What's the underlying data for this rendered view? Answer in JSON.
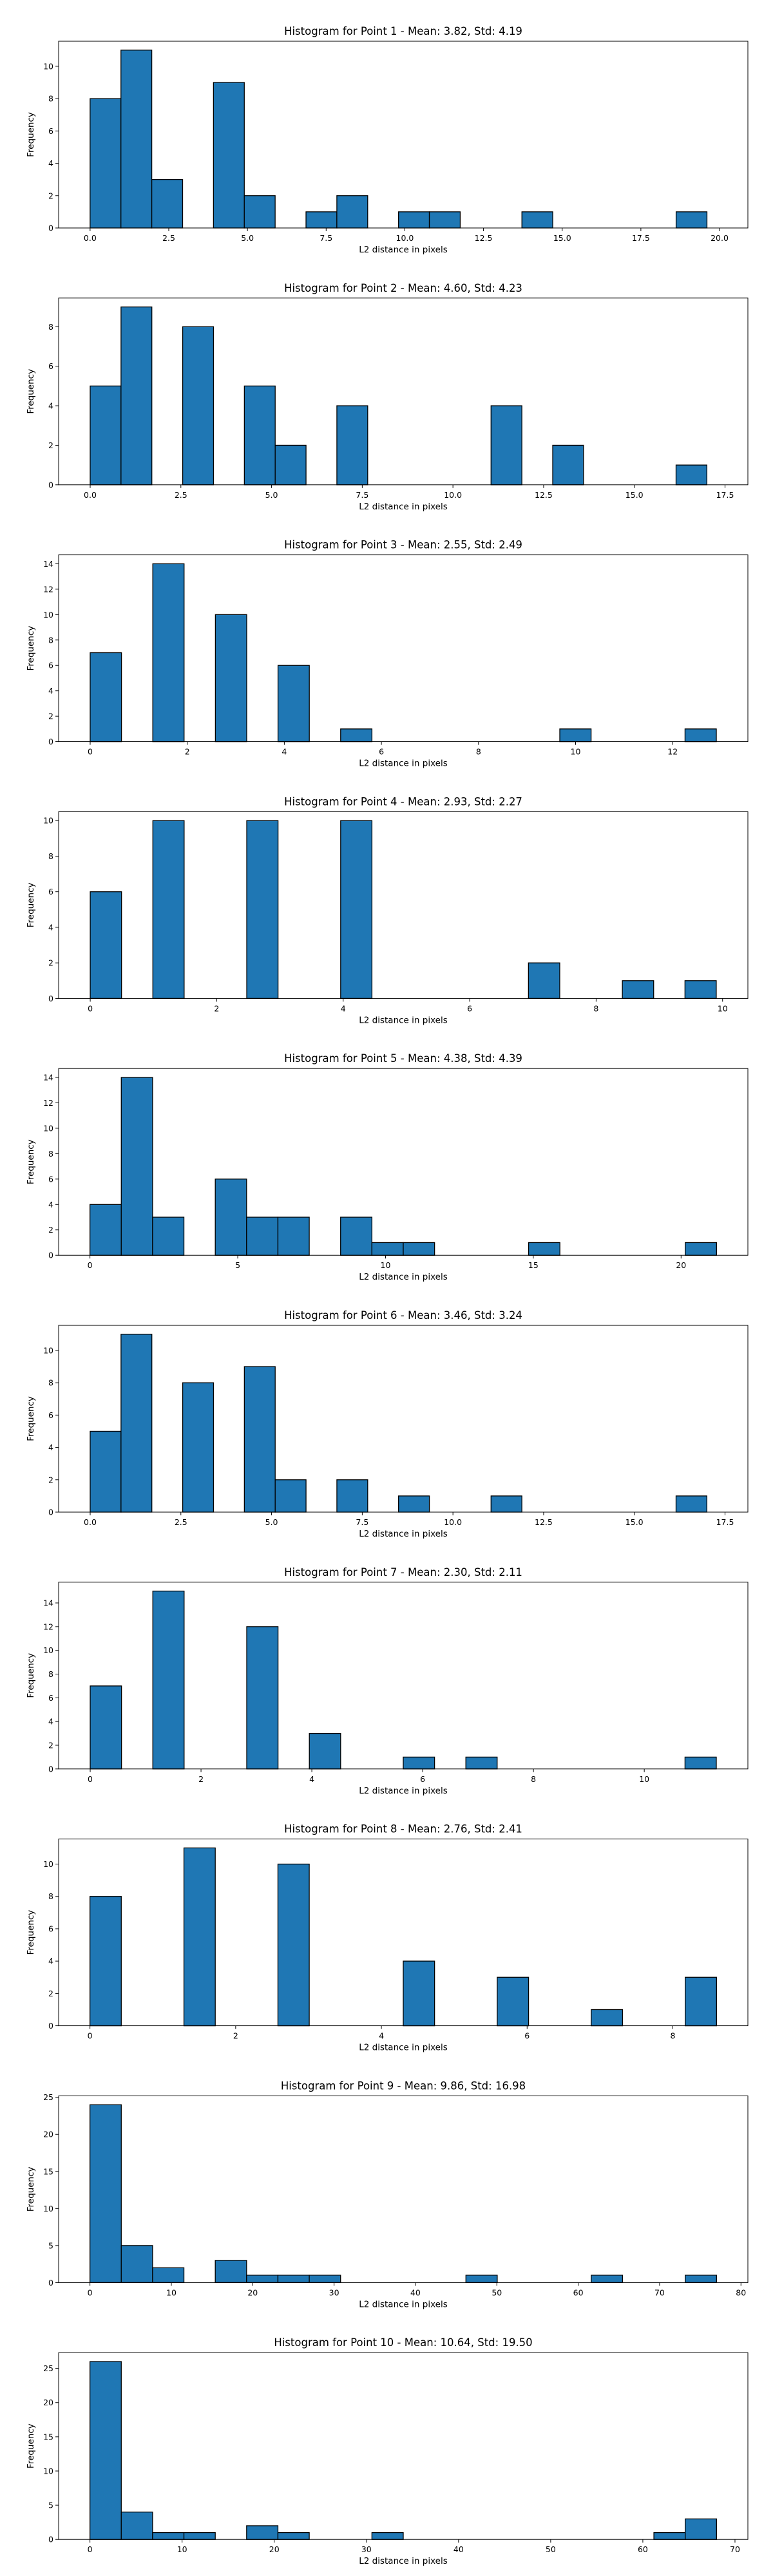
{
  "chart_data": [
    {
      "type": "bar",
      "title": "Histogram for Point 1 - Mean: 3.82, Std: 4.19",
      "xlabel": "L2 distance in pixels",
      "ylabel": "Frequency",
      "xlim": [
        -1.0,
        20.9
      ],
      "ylim": [
        0,
        11.55
      ],
      "xticks": [
        0,
        2.5,
        5,
        7.5,
        10,
        12.5,
        15,
        17.5,
        20
      ],
      "xtick_labels": [
        "0.0",
        "2.5",
        "5.0",
        "7.5",
        "10.0",
        "12.5",
        "15.0",
        "17.5",
        "20.0"
      ],
      "yticks": [
        0,
        2,
        4,
        6,
        8,
        10
      ],
      "ytick_labels": [
        "0",
        "2",
        "4",
        "6",
        "8",
        "10"
      ],
      "bin_edges": [
        0.0,
        0.98,
        1.96,
        2.94,
        3.92,
        4.9,
        5.88,
        6.86,
        7.84,
        8.82,
        9.8,
        10.78,
        11.76,
        12.74,
        13.72,
        14.7,
        15.68,
        16.66,
        17.64,
        18.62,
        19.6
      ],
      "counts": [
        8,
        11,
        3,
        0,
        9,
        2,
        0,
        1,
        2,
        0,
        1,
        1,
        0,
        0,
        1,
        0,
        0,
        0,
        0,
        1
      ]
    },
    {
      "type": "bar",
      "title": "Histogram for Point 2 - Mean: 4.60, Std: 4.23",
      "xlabel": "L2 distance in pixels",
      "ylabel": "Frequency",
      "xlim": [
        -0.87,
        18.13
      ],
      "ylim": [
        0,
        9.45
      ],
      "xticks": [
        0,
        2.5,
        5,
        7.5,
        10,
        12.5,
        15,
        17.5
      ],
      "xtick_labels": [
        "0.0",
        "2.5",
        "5.0",
        "7.5",
        "10.0",
        "12.5",
        "15.0",
        "17.5"
      ],
      "yticks": [
        0,
        2,
        4,
        6,
        8
      ],
      "ytick_labels": [
        "0",
        "2",
        "4",
        "6",
        "8"
      ],
      "bin_edges": [
        0.0,
        0.85,
        1.7,
        2.55,
        3.4,
        4.25,
        5.1,
        5.95,
        6.8,
        7.65,
        8.5,
        9.35,
        10.2,
        11.05,
        11.9,
        12.75,
        13.6,
        14.45,
        15.3,
        16.15,
        17.0
      ],
      "counts": [
        5,
        9,
        0,
        8,
        0,
        5,
        2,
        0,
        4,
        0,
        0,
        0,
        0,
        4,
        0,
        2,
        0,
        0,
        0,
        1
      ]
    },
    {
      "type": "bar",
      "title": "Histogram for Point 3 - Mean: 2.55, Std: 2.49",
      "xlabel": "L2 distance in pixels",
      "ylabel": "Frequency",
      "xlim": [
        -0.65,
        13.55
      ],
      "ylim": [
        0,
        14.7
      ],
      "xticks": [
        0,
        2,
        4,
        6,
        8,
        10,
        12
      ],
      "xtick_labels": [
        "0",
        "2",
        "4",
        "6",
        "8",
        "10",
        "12"
      ],
      "yticks": [
        0,
        2,
        4,
        6,
        8,
        10,
        12,
        14
      ],
      "ytick_labels": [
        "0",
        "2",
        "4",
        "6",
        "8",
        "10",
        "12",
        "14"
      ],
      "bin_edges": [
        0.0,
        0.645,
        1.29,
        1.935,
        2.58,
        3.225,
        3.87,
        4.515,
        5.16,
        5.805,
        6.45,
        7.095,
        7.74,
        8.385,
        9.03,
        9.675,
        10.32,
        10.965,
        11.61,
        12.255,
        12.9
      ],
      "counts": [
        7,
        0,
        14,
        0,
        10,
        0,
        6,
        0,
        1,
        0,
        0,
        0,
        0,
        0,
        0,
        1,
        0,
        0,
        0,
        1
      ]
    },
    {
      "type": "bar",
      "title": "Histogram for Point 4 - Mean: 2.93, Std: 2.27",
      "xlabel": "L2 distance in pixels",
      "ylabel": "Frequency",
      "xlim": [
        -0.5,
        10.4
      ],
      "ylim": [
        0,
        10.5
      ],
      "xticks": [
        0,
        2,
        4,
        6,
        8,
        10
      ],
      "xtick_labels": [
        "0",
        "2",
        "4",
        "6",
        "8",
        "10"
      ],
      "yticks": [
        0,
        2,
        4,
        6,
        8,
        10
      ],
      "ytick_labels": [
        "0",
        "2",
        "4",
        "6",
        "8",
        "10"
      ],
      "bin_edges": [
        0.0,
        0.495,
        0.99,
        1.485,
        1.98,
        2.475,
        2.97,
        3.465,
        3.96,
        4.455,
        4.95,
        5.445,
        5.94,
        6.435,
        6.93,
        7.425,
        7.92,
        8.415,
        8.91,
        9.405,
        9.9
      ],
      "counts": [
        6,
        0,
        10,
        0,
        0,
        10,
        0,
        0,
        10,
        0,
        0,
        0,
        0,
        0,
        2,
        0,
        0,
        1,
        0,
        1
      ]
    },
    {
      "type": "bar",
      "title": "Histogram for Point 5 - Mean: 4.38, Std: 4.39",
      "xlabel": "L2 distance in pixels",
      "ylabel": "Frequency",
      "xlim": [
        -1.06,
        22.26
      ],
      "ylim": [
        0,
        14.7
      ],
      "xticks": [
        0,
        5,
        10,
        15,
        20
      ],
      "xtick_labels": [
        "0",
        "5",
        "10",
        "15",
        "20"
      ],
      "yticks": [
        0,
        2,
        4,
        6,
        8,
        10,
        12,
        14
      ],
      "ytick_labels": [
        "0",
        "2",
        "4",
        "6",
        "8",
        "10",
        "12",
        "14"
      ],
      "bin_edges": [
        0.0,
        1.06,
        2.12,
        3.18,
        4.24,
        5.3,
        6.36,
        7.42,
        8.48,
        9.54,
        10.6,
        11.66,
        12.72,
        13.78,
        14.84,
        15.9,
        16.96,
        18.02,
        19.08,
        20.14,
        21.2
      ],
      "counts": [
        4,
        14,
        3,
        0,
        6,
        3,
        3,
        0,
        3,
        1,
        1,
        0,
        0,
        0,
        1,
        0,
        0,
        0,
        0,
        1
      ]
    },
    {
      "type": "bar",
      "title": "Histogram for Point 6 - Mean: 3.46, Std: 3.24",
      "xlabel": "L2 distance in pixels",
      "ylabel": "Frequency",
      "xlim": [
        -0.87,
        18.13
      ],
      "ylim": [
        0,
        11.55
      ],
      "xticks": [
        0,
        2.5,
        5,
        7.5,
        10,
        12.5,
        15,
        17.5
      ],
      "xtick_labels": [
        "0.0",
        "2.5",
        "5.0",
        "7.5",
        "10.0",
        "12.5",
        "15.0",
        "17.5"
      ],
      "yticks": [
        0,
        2,
        4,
        6,
        8,
        10
      ],
      "ytick_labels": [
        "0",
        "2",
        "4",
        "6",
        "8",
        "10"
      ],
      "bin_edges": [
        0.0,
        0.85,
        1.7,
        2.55,
        3.4,
        4.25,
        5.1,
        5.95,
        6.8,
        7.65,
        8.5,
        9.35,
        10.2,
        11.05,
        11.9,
        12.75,
        13.6,
        14.45,
        15.3,
        16.15,
        17.0
      ],
      "counts": [
        5,
        11,
        0,
        8,
        0,
        9,
        2,
        0,
        2,
        0,
        1,
        0,
        0,
        1,
        0,
        0,
        0,
        0,
        0,
        1
      ]
    },
    {
      "type": "bar",
      "title": "Histogram for Point 7 - Mean: 2.30, Std: 2.11",
      "xlabel": "L2 distance in pixels",
      "ylabel": "Frequency",
      "xlim": [
        -0.57,
        11.87
      ],
      "ylim": [
        0,
        15.75
      ],
      "xticks": [
        0,
        2,
        4,
        6,
        8,
        10
      ],
      "xtick_labels": [
        "0",
        "2",
        "4",
        "6",
        "8",
        "10"
      ],
      "yticks": [
        0,
        2,
        4,
        6,
        8,
        10,
        12,
        14
      ],
      "ytick_labels": [
        "0",
        "2",
        "4",
        "6",
        "8",
        "10",
        "12",
        "14"
      ],
      "bin_edges": [
        0.0,
        0.565,
        1.13,
        1.695,
        2.26,
        2.825,
        3.39,
        3.955,
        4.52,
        5.085,
        5.65,
        6.215,
        6.78,
        7.345,
        7.91,
        8.475,
        9.04,
        9.605,
        10.17,
        10.735,
        11.3
      ],
      "counts": [
        7,
        0,
        15,
        0,
        0,
        12,
        0,
        3,
        0,
        0,
        1,
        0,
        1,
        0,
        0,
        0,
        0,
        0,
        0,
        1
      ]
    },
    {
      "type": "bar",
      "title": "Histogram for Point 8 - Mean: 2.76, Std: 2.41",
      "xlabel": "L2 distance in pixels",
      "ylabel": "Frequency",
      "xlim": [
        -0.43,
        9.03
      ],
      "ylim": [
        0,
        11.55
      ],
      "xticks": [
        0,
        2,
        4,
        6,
        8
      ],
      "xtick_labels": [
        "0",
        "2",
        "4",
        "6",
        "8"
      ],
      "yticks": [
        0,
        2,
        4,
        6,
        8,
        10
      ],
      "ytick_labels": [
        "0",
        "2",
        "4",
        "6",
        "8",
        "10"
      ],
      "bin_edges": [
        0.0,
        0.43,
        0.86,
        1.29,
        1.72,
        2.15,
        2.58,
        3.01,
        3.44,
        3.87,
        4.3,
        4.73,
        5.16,
        5.59,
        6.02,
        6.45,
        6.88,
        7.31,
        7.74,
        8.17,
        8.6
      ],
      "counts": [
        8,
        0,
        0,
        11,
        0,
        0,
        10,
        0,
        0,
        0,
        4,
        0,
        0,
        3,
        0,
        0,
        1,
        0,
        0,
        3
      ]
    },
    {
      "type": "bar",
      "title": "Histogram for Point 9 - Mean: 9.86, Std: 16.98",
      "xlabel": "L2 distance in pixels",
      "ylabel": "Frequency",
      "xlim": [
        -3.85,
        80.85
      ],
      "ylim": [
        0,
        25.2
      ],
      "xticks": [
        0,
        10,
        20,
        30,
        40,
        50,
        60,
        70,
        80
      ],
      "xtick_labels": [
        "0",
        "10",
        "20",
        "30",
        "40",
        "50",
        "60",
        "70",
        "80"
      ],
      "yticks": [
        0,
        5,
        10,
        15,
        20,
        25
      ],
      "ytick_labels": [
        "0",
        "5",
        "10",
        "15",
        "20",
        "25"
      ],
      "bin_edges": [
        0.0,
        3.85,
        7.7,
        11.55,
        15.4,
        19.25,
        23.1,
        26.95,
        30.8,
        34.65,
        38.5,
        42.35,
        46.2,
        50.05,
        53.9,
        57.75,
        61.6,
        65.45,
        69.3,
        73.15,
        77.0
      ],
      "counts": [
        24,
        5,
        2,
        0,
        3,
        1,
        1,
        1,
        0,
        0,
        0,
        0,
        1,
        0,
        0,
        0,
        1,
        0,
        0,
        1
      ]
    },
    {
      "type": "bar",
      "title": "Histogram for Point 10 - Mean: 10.64, Std: 19.50",
      "xlabel": "L2 distance in pixels",
      "ylabel": "Frequency",
      "xlim": [
        -3.4,
        71.4
      ],
      "ylim": [
        0,
        27.3
      ],
      "xticks": [
        0,
        10,
        20,
        30,
        40,
        50,
        60,
        70
      ],
      "xtick_labels": [
        "0",
        "10",
        "20",
        "30",
        "40",
        "50",
        "60",
        "70"
      ],
      "yticks": [
        0,
        5,
        10,
        15,
        20,
        25
      ],
      "ytick_labels": [
        "0",
        "5",
        "10",
        "15",
        "20",
        "25"
      ],
      "bin_edges": [
        0.0,
        3.4,
        6.8,
        10.2,
        13.6,
        17.0,
        20.4,
        23.8,
        27.2,
        30.6,
        34.0,
        37.4,
        40.8,
        44.2,
        47.6,
        51.0,
        54.4,
        57.8,
        61.2,
        64.6,
        68.0
      ],
      "counts": [
        26,
        4,
        1,
        1,
        0,
        2,
        1,
        0,
        0,
        1,
        0,
        0,
        0,
        0,
        0,
        0,
        0,
        0,
        1,
        3
      ]
    }
  ],
  "colors": {
    "bar_fill": "#1f77b4",
    "bar_edge": "#000000",
    "background": "#ffffff"
  }
}
